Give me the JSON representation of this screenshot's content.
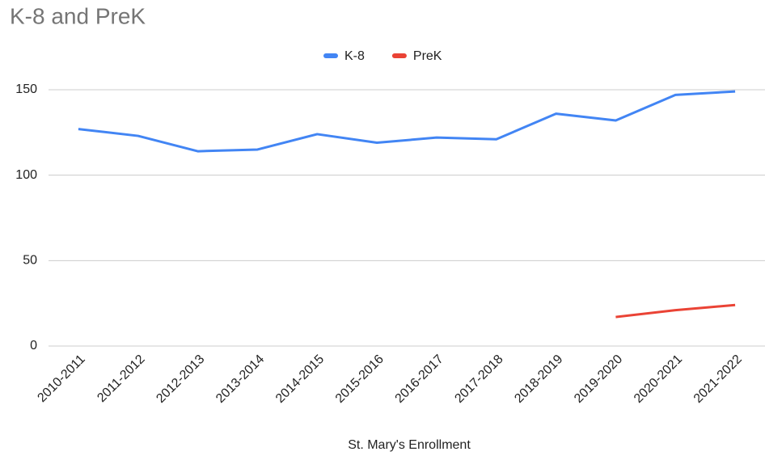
{
  "chart_data": {
    "type": "line",
    "title": "K-8 and PreK",
    "x_label": "St. Mary's Enrollment",
    "categories": [
      "2010-2011",
      "2011-2012",
      "2012-2013",
      "2013-2014",
      "2014-2015",
      "2015-2016",
      "2016-2017",
      "2017-2018",
      "2018-2019",
      "2019-2020",
      "2020-2021",
      "2021-2022"
    ],
    "series": [
      {
        "name": "K-8",
        "color": "#4285f4",
        "values": [
          127,
          123,
          114,
          115,
          124,
          119,
          122,
          121,
          136,
          132,
          147,
          149
        ]
      },
      {
        "name": "PreK",
        "color": "#ea4335",
        "values": [
          null,
          null,
          null,
          null,
          null,
          null,
          null,
          null,
          null,
          17,
          21,
          24
        ]
      }
    ],
    "ylim": [
      0,
      150
    ],
    "yticks": [
      0,
      50,
      100,
      150
    ],
    "grid": true,
    "legend": "top"
  }
}
